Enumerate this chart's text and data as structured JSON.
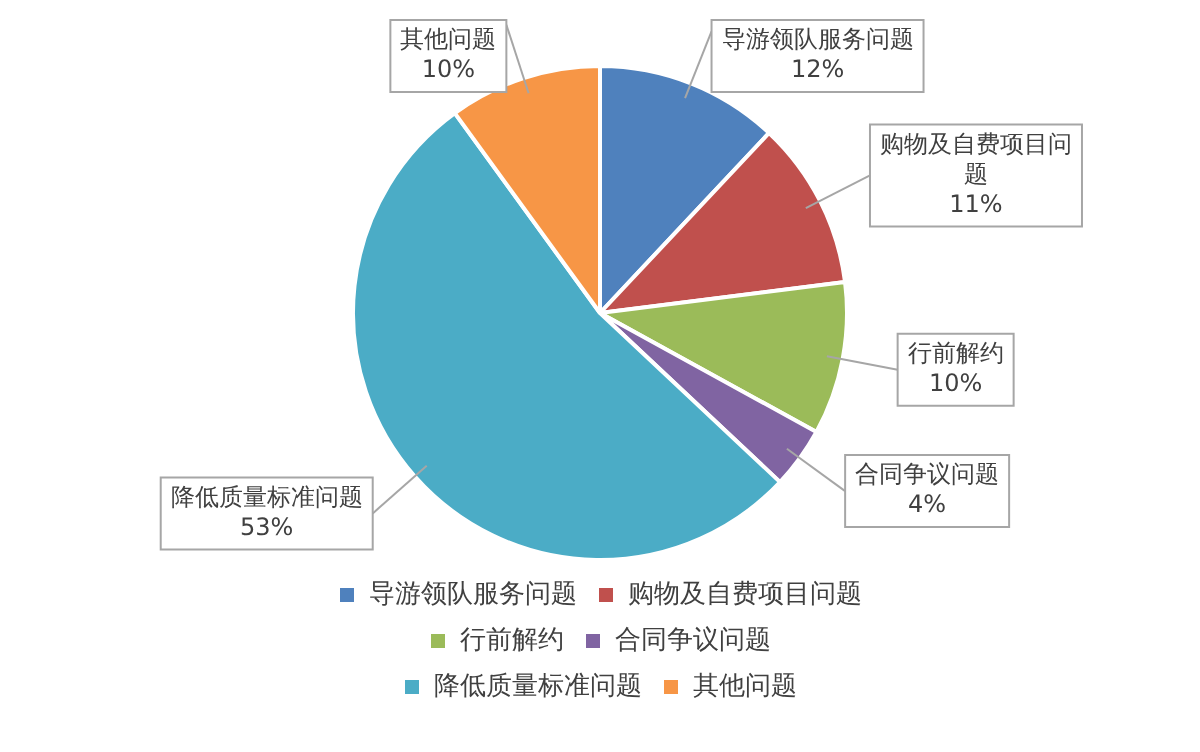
{
  "chart_data": {
    "type": "pie",
    "categories": [
      "导游领队服务问题",
      "购物及自费项目问题",
      "行前解约",
      "合同争议问题",
      "降低质量标准问题",
      "其他问题"
    ],
    "values": [
      12,
      11,
      10,
      4,
      53,
      10
    ],
    "value_labels": [
      "12%",
      "11%",
      "10%",
      "4%",
      "53%",
      "10%"
    ],
    "colors": [
      "#4f81bd",
      "#c0504d",
      "#9bbb59",
      "#8064a2",
      "#4bacc6",
      "#f79646"
    ],
    "legend": "bottom"
  }
}
